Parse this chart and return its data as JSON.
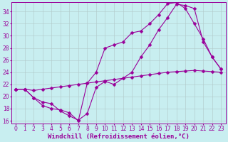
{
  "xlabel": "Windchill (Refroidissement éolien,°C)",
  "background_color": "#c8eef0",
  "line_color": "#990099",
  "grid_color": "#b0c8c8",
  "xlim": [
    -0.5,
    23.5
  ],
  "ylim": [
    15.5,
    35.5
  ],
  "xticks": [
    0,
    1,
    2,
    3,
    4,
    5,
    6,
    7,
    8,
    9,
    10,
    11,
    12,
    13,
    14,
    15,
    16,
    17,
    18,
    19,
    20,
    21,
    22,
    23
  ],
  "yticks": [
    16,
    18,
    20,
    22,
    24,
    26,
    28,
    30,
    32,
    34
  ],
  "series1_x": [
    0,
    1,
    2,
    3,
    4,
    5,
    6,
    7,
    8,
    9,
    10,
    11,
    12,
    13,
    14,
    15,
    16,
    17,
    18,
    19,
    20,
    21,
    22,
    23
  ],
  "series1_y": [
    21.2,
    21.2,
    19.8,
    19.1,
    18.8,
    17.6,
    16.8,
    16.1,
    17.2,
    21.5,
    22.5,
    22.0,
    23.0,
    24.0,
    26.5,
    28.5,
    31.0,
    33.0,
    35.2,
    35.0,
    34.5,
    29.0,
    26.5,
    24.5
  ],
  "series2_x": [
    0,
    1,
    2,
    3,
    4,
    5,
    6,
    7,
    8,
    9,
    10,
    11,
    12,
    13,
    14,
    15,
    16,
    17,
    18,
    19,
    20,
    21,
    22,
    23
  ],
  "series2_y": [
    21.2,
    21.2,
    21.0,
    21.2,
    21.4,
    21.6,
    21.8,
    22.0,
    22.2,
    22.4,
    22.6,
    22.8,
    23.0,
    23.2,
    23.4,
    23.6,
    23.8,
    24.0,
    24.1,
    24.2,
    24.3,
    24.2,
    24.1,
    24.0
  ],
  "series3_x": [
    0,
    1,
    2,
    3,
    4,
    5,
    6,
    7,
    8,
    9,
    10,
    11,
    12,
    13,
    14,
    15,
    16,
    17,
    18,
    19,
    20,
    21,
    22,
    23
  ],
  "series3_y": [
    21.2,
    21.2,
    19.8,
    18.5,
    18.0,
    17.8,
    17.3,
    16.0,
    22.2,
    24.0,
    28.0,
    28.5,
    29.0,
    30.5,
    30.8,
    32.0,
    33.5,
    35.3,
    35.5,
    34.5,
    32.0,
    29.5,
    26.5,
    24.5
  ],
  "tick_fontsize": 5.5,
  "xlabel_fontsize": 6.5
}
